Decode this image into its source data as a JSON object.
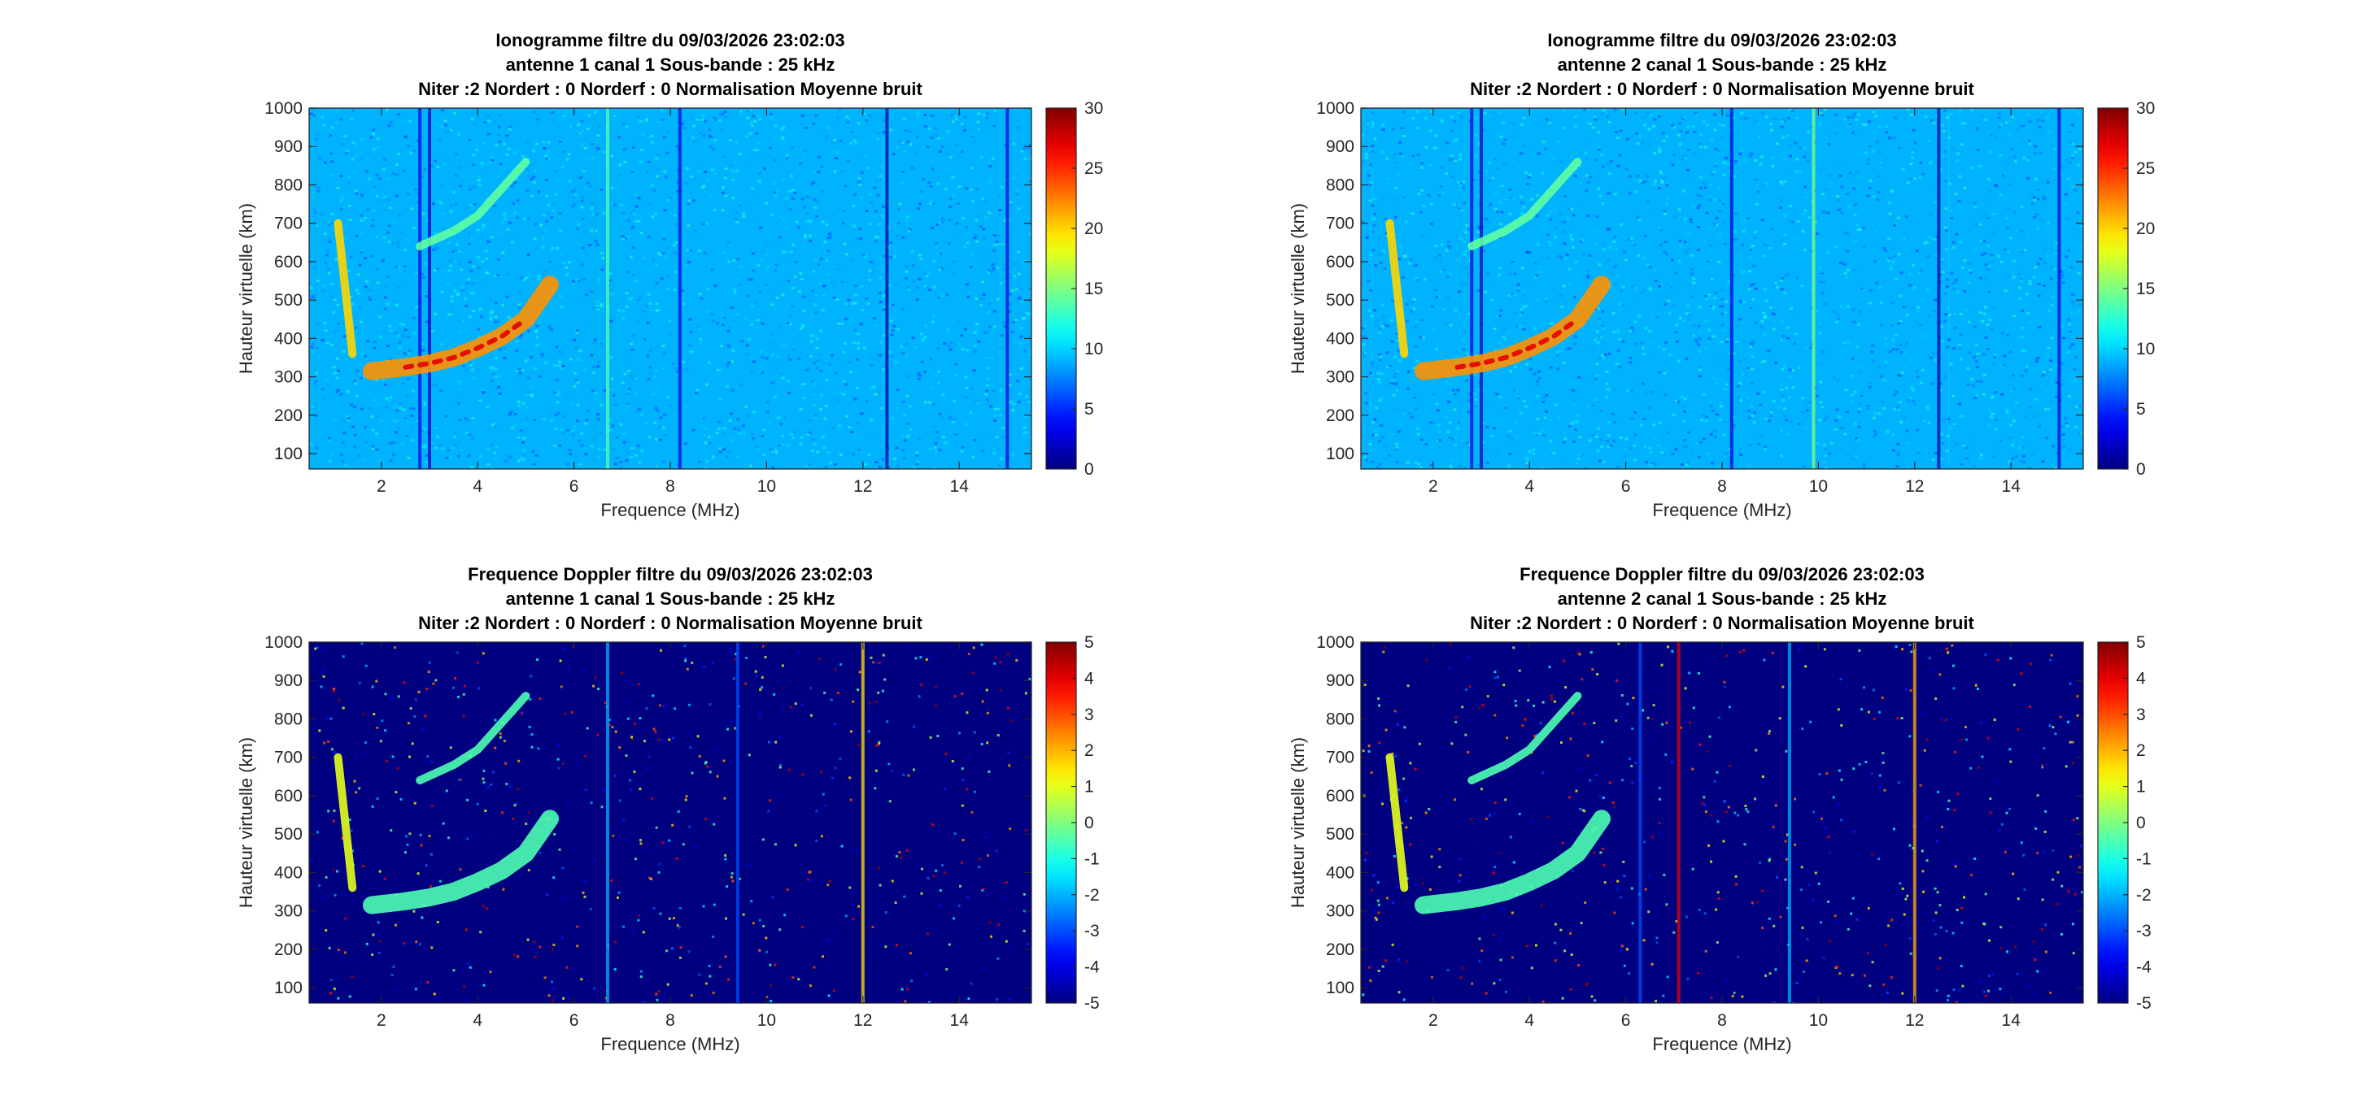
{
  "figure": {
    "background": "#ffffff"
  },
  "chart_data": [
    {
      "type": "heatmap",
      "title": [
        "Ionogramme filtre du 09/03/2026 23:02:03",
        "antenne 1 canal 1 Sous-bande : 25 kHz",
        "Niter :2 Nordert : 0 Norderf : 0 Normalisation Moyenne bruit"
      ],
      "xlabel": "Frequence (MHz)",
      "ylabel": "Hauteur virtuelle (km)",
      "xlim": [
        0.5,
        15.5
      ],
      "ylim": [
        60,
        1000
      ],
      "xticks": [
        2,
        4,
        6,
        8,
        10,
        12,
        14
      ],
      "yticks": [
        100,
        200,
        300,
        400,
        500,
        600,
        700,
        800,
        900,
        1000
      ],
      "colorbar": {
        "min": 0,
        "max": 30,
        "ticks": [
          0,
          5,
          10,
          15,
          20,
          25,
          30
        ],
        "colormap": "jet"
      },
      "background_level": 9,
      "traces": [
        {
          "name": "F2 trace",
          "x": [
            1.8,
            2.5,
            3.0,
            3.5,
            4.0,
            4.5,
            5.0,
            5.5
          ],
          "y": [
            315,
            325,
            335,
            350,
            375,
            405,
            450,
            540
          ],
          "level": 22
        },
        {
          "name": "F2 second hop",
          "x": [
            2.8,
            3.5,
            4.0,
            4.5,
            5.0
          ],
          "y": [
            640,
            680,
            720,
            790,
            860
          ],
          "level": 14
        },
        {
          "name": "low freq echo",
          "x": [
            1.1,
            1.4
          ],
          "y": [
            700,
            360
          ],
          "level": 20
        }
      ],
      "vertical_lines": [
        {
          "x": 2.8,
          "level": 3
        },
        {
          "x": 3.0,
          "level": 2
        },
        {
          "x": 8.2,
          "level": 3
        },
        {
          "x": 12.5,
          "level": 1
        },
        {
          "x": 15.0,
          "level": 3
        },
        {
          "x": 6.7,
          "level": 14
        }
      ]
    },
    {
      "type": "heatmap",
      "title": [
        "Ionogramme filtre du 09/03/2026 23:02:03",
        "antenne 2 canal 1 Sous-bande : 25 kHz",
        "Niter :2 Nordert : 0 Norderf : 0 Normalisation Moyenne bruit"
      ],
      "xlabel": "Frequence (MHz)",
      "ylabel": "Hauteur virtuelle (km)",
      "xlim": [
        0.5,
        15.5
      ],
      "ylim": [
        60,
        1000
      ],
      "xticks": [
        2,
        4,
        6,
        8,
        10,
        12,
        14
      ],
      "yticks": [
        100,
        200,
        300,
        400,
        500,
        600,
        700,
        800,
        900,
        1000
      ],
      "colorbar": {
        "min": 0,
        "max": 30,
        "ticks": [
          0,
          5,
          10,
          15,
          20,
          25,
          30
        ],
        "colormap": "jet"
      },
      "background_level": 9,
      "traces": [
        {
          "name": "F2 trace",
          "x": [
            1.8,
            2.5,
            3.0,
            3.5,
            4.0,
            4.5,
            5.0,
            5.5
          ],
          "y": [
            315,
            325,
            335,
            350,
            375,
            405,
            450,
            540
          ],
          "level": 22
        },
        {
          "name": "F2 second hop",
          "x": [
            2.8,
            3.5,
            4.0,
            4.5,
            5.0
          ],
          "y": [
            640,
            680,
            720,
            790,
            860
          ],
          "level": 14
        },
        {
          "name": "low freq echo",
          "x": [
            1.1,
            1.4
          ],
          "y": [
            700,
            360
          ],
          "level": 20
        }
      ],
      "vertical_lines": [
        {
          "x": 2.8,
          "level": 3
        },
        {
          "x": 3.0,
          "level": 2
        },
        {
          "x": 8.2,
          "level": 3
        },
        {
          "x": 12.5,
          "level": 1
        },
        {
          "x": 15.0,
          "level": 3
        },
        {
          "x": 9.9,
          "level": 15
        }
      ]
    },
    {
      "type": "heatmap",
      "title": [
        "Frequence Doppler filtre du 09/03/2026 23:02:03",
        "antenne 1 canal 1 Sous-bande : 25 kHz",
        "Niter :2 Nordert : 0 Norderf : 0 Normalisation Moyenne bruit"
      ],
      "xlabel": "Frequence (MHz)",
      "ylabel": "Hauteur virtuelle (km)",
      "xlim": [
        0.5,
        15.5
      ],
      "ylim": [
        60,
        1000
      ],
      "xticks": [
        2,
        4,
        6,
        8,
        10,
        12,
        14
      ],
      "yticks": [
        100,
        200,
        300,
        400,
        500,
        600,
        700,
        800,
        900,
        1000
      ],
      "colorbar": {
        "min": -5,
        "max": 5,
        "ticks": [
          -5,
          -4,
          -3,
          -2,
          -1,
          0,
          1,
          2,
          3,
          4,
          5
        ],
        "colormap": "jet"
      },
      "background_level": -5,
      "traces": [
        {
          "name": "F2 trace",
          "x": [
            1.8,
            2.5,
            3.0,
            3.5,
            4.0,
            4.5,
            5.0,
            5.5
          ],
          "y": [
            315,
            325,
            335,
            350,
            375,
            405,
            450,
            540
          ],
          "level": -0.5
        },
        {
          "name": "F2 second hop",
          "x": [
            2.8,
            3.5,
            4.0,
            4.5,
            5.0
          ],
          "y": [
            640,
            680,
            720,
            790,
            860
          ],
          "level": -0.5
        },
        {
          "name": "low freq echo",
          "x": [
            1.1,
            1.4
          ],
          "y": [
            700,
            360
          ],
          "level": 1
        }
      ],
      "vertical_lines": [
        {
          "x": 6.7,
          "level": -2
        },
        {
          "x": 9.4,
          "level": -3
        },
        {
          "x": 12.0,
          "level": 1.5
        }
      ]
    },
    {
      "type": "heatmap",
      "title": [
        "Frequence Doppler filtre du 09/03/2026 23:02:03",
        "antenne 2 canal 1 Sous-bande : 25 kHz",
        "Niter :2 Nordert : 0 Norderf : 0 Normalisation Moyenne bruit"
      ],
      "xlabel": "Frequence (MHz)",
      "ylabel": "Hauteur virtuelle (km)",
      "xlim": [
        0.5,
        15.5
      ],
      "ylim": [
        60,
        1000
      ],
      "xticks": [
        2,
        4,
        6,
        8,
        10,
        12,
        14
      ],
      "yticks": [
        100,
        200,
        300,
        400,
        500,
        600,
        700,
        800,
        900,
        1000
      ],
      "colorbar": {
        "min": -5,
        "max": 5,
        "ticks": [
          -5,
          -4,
          -3,
          -2,
          -1,
          0,
          1,
          2,
          3,
          4,
          5
        ],
        "colormap": "jet"
      },
      "background_level": -5,
      "traces": [
        {
          "name": "F2 trace",
          "x": [
            1.8,
            2.5,
            3.0,
            3.5,
            4.0,
            4.5,
            5.0,
            5.5
          ],
          "y": [
            315,
            325,
            335,
            350,
            375,
            405,
            450,
            540
          ],
          "level": -0.5
        },
        {
          "name": "F2 second hop",
          "x": [
            2.8,
            3.5,
            4.0,
            4.5,
            5.0
          ],
          "y": [
            640,
            680,
            720,
            790,
            860
          ],
          "level": -0.5
        },
        {
          "name": "low freq echo",
          "x": [
            1.1,
            1.4
          ],
          "y": [
            700,
            360
          ],
          "level": 1
        }
      ],
      "vertical_lines": [
        {
          "x": 6.3,
          "level": -3
        },
        {
          "x": 7.1,
          "level": 4
        },
        {
          "x": 9.4,
          "level": -2
        },
        {
          "x": 12.0,
          "level": 2
        }
      ]
    }
  ]
}
